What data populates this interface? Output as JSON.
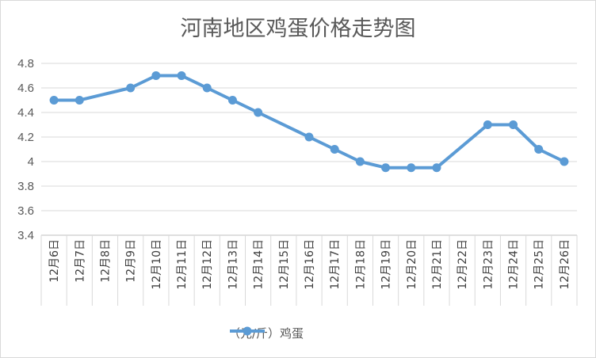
{
  "chart_data": {
    "type": "line",
    "title": "河南地区鸡蛋价格走势图",
    "categories": [
      "12月6日",
      "12月7日",
      "12月8日",
      "12月9日",
      "12月10日",
      "12月11日",
      "12月12日",
      "12月13日",
      "12月14日",
      "12月15日",
      "12月16日",
      "12月17日",
      "12月18日",
      "12月19日",
      "12月20日",
      "12月21日",
      "12月22日",
      "12月23日",
      "12月24日",
      "12月25日",
      "12月26日"
    ],
    "series": [
      {
        "name": "（元/斤）鸡蛋",
        "values": [
          4.5,
          4.5,
          null,
          4.6,
          4.7,
          4.7,
          4.6,
          4.5,
          4.4,
          null,
          4.2,
          4.1,
          4.0,
          3.95,
          3.95,
          3.95,
          null,
          4.3,
          4.3,
          4.1,
          4.0
        ]
      }
    ],
    "yticks": [
      "3.4",
      "3.6",
      "3.8",
      "4",
      "4.2",
      "4.4",
      "4.6",
      "4.8"
    ],
    "ylim": [
      3.4,
      4.8
    ],
    "grid": true,
    "legend": "bottom",
    "colors": {
      "line": "#5b9bd5",
      "grid": "#d9d9d9",
      "axis": "#bfbfbf"
    }
  }
}
